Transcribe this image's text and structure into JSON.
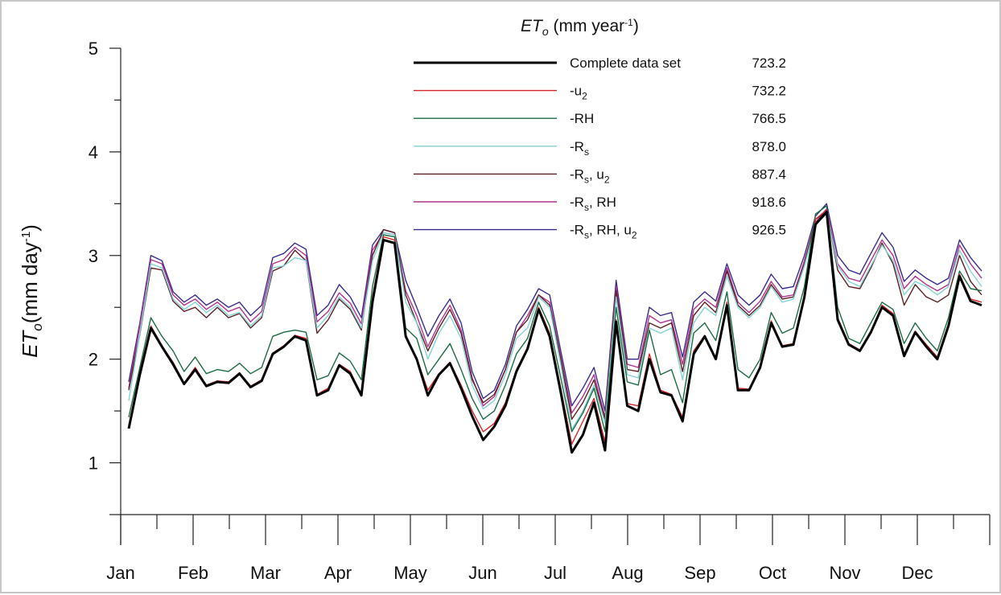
{
  "chart_data": {
    "type": "line",
    "xlabel": "",
    "ylabel": {
      "main": "ET",
      "sub": "o",
      "rest": "(mm day",
      "sup": "-1",
      "end": ")"
    },
    "ylim": [
      0.5,
      5
    ],
    "yticks": [
      1,
      2,
      3,
      4,
      5
    ],
    "months": [
      "Jan",
      "Feb",
      "Mar",
      "Apr",
      "May",
      "Jun",
      "Jul",
      "Aug",
      "Sep",
      "Oct",
      "Nov",
      "Dec"
    ],
    "legend": {
      "title": {
        "main": "ET",
        "sub": "o",
        "rest": " (mm year",
        "sup": "-1",
        "end": ")"
      },
      "position": "top-right"
    },
    "series": [
      {
        "label": "Complete data set",
        "sub": "",
        "rest": "",
        "sub2": "",
        "rest2": "",
        "total": "723.2",
        "color": "#000000",
        "width": 3,
        "values": [
          1.33,
          1.85,
          2.3,
          2.12,
          1.95,
          1.76,
          1.9,
          1.74,
          1.78,
          1.77,
          1.86,
          1.73,
          1.79,
          2.05,
          2.12,
          2.22,
          2.18,
          1.65,
          1.7,
          1.94,
          1.86,
          1.65,
          2.55,
          3.15,
          3.12,
          2.22,
          2.0,
          1.65,
          1.85,
          1.96,
          1.72,
          1.45,
          1.22,
          1.35,
          1.55,
          1.88,
          2.1,
          2.48,
          2.22,
          1.68,
          1.1,
          1.27,
          1.58,
          1.12,
          2.36,
          1.55,
          1.5,
          2.0,
          1.68,
          1.65,
          1.4,
          2.05,
          2.22,
          2.0,
          2.52,
          1.7,
          1.7,
          1.92,
          2.35,
          2.12,
          2.14,
          2.6,
          3.3,
          3.42,
          2.38,
          2.14,
          2.08,
          2.26,
          2.5,
          2.42,
          2.03,
          2.26,
          2.12,
          2.0,
          2.32,
          2.8,
          2.56,
          2.52
        ]
      },
      {
        "label": "-u",
        "sub": "2",
        "rest": "",
        "sub2": "",
        "rest2": "",
        "total": "732.2",
        "color": "#d4252c",
        "width": 1.4,
        "values": [
          1.36,
          1.86,
          2.32,
          2.13,
          1.97,
          1.77,
          1.92,
          1.75,
          1.79,
          1.78,
          1.87,
          1.74,
          1.8,
          2.06,
          2.13,
          2.23,
          2.2,
          1.66,
          1.72,
          1.95,
          1.88,
          1.66,
          2.6,
          3.18,
          3.15,
          2.23,
          2.01,
          1.7,
          1.86,
          1.97,
          1.75,
          1.5,
          1.3,
          1.38,
          1.58,
          1.9,
          2.11,
          2.5,
          2.25,
          1.72,
          1.18,
          1.4,
          1.62,
          1.2,
          2.38,
          1.57,
          1.55,
          2.05,
          1.7,
          1.66,
          1.44,
          2.08,
          2.23,
          2.01,
          2.55,
          1.72,
          1.71,
          1.93,
          2.37,
          2.13,
          2.15,
          2.62,
          3.35,
          3.44,
          2.4,
          2.15,
          2.09,
          2.27,
          2.52,
          2.44,
          2.05,
          2.27,
          2.14,
          2.02,
          2.34,
          2.82,
          2.58,
          2.55
        ]
      },
      {
        "label": "-RH",
        "sub": "",
        "rest": "",
        "sub2": "",
        "rest2": "",
        "total": "766.5",
        "color": "#1b6b43",
        "width": 1.4,
        "values": [
          1.44,
          1.92,
          2.4,
          2.22,
          2.08,
          1.88,
          2.02,
          1.86,
          1.9,
          1.88,
          1.96,
          1.86,
          1.92,
          2.22,
          2.26,
          2.28,
          2.26,
          1.8,
          1.84,
          2.06,
          1.98,
          1.8,
          2.7,
          3.2,
          3.18,
          2.3,
          2.2,
          1.85,
          2.0,
          2.15,
          1.9,
          1.62,
          1.42,
          1.5,
          1.75,
          2.05,
          2.2,
          2.55,
          2.32,
          1.82,
          1.3,
          1.48,
          1.72,
          1.3,
          2.5,
          1.78,
          1.75,
          2.28,
          1.85,
          1.9,
          1.58,
          2.25,
          2.35,
          2.18,
          2.65,
          1.9,
          1.82,
          2.0,
          2.45,
          2.25,
          2.3,
          2.7,
          3.4,
          3.48,
          2.5,
          2.2,
          2.15,
          2.35,
          2.55,
          2.48,
          2.15,
          2.35,
          2.2,
          2.08,
          2.4,
          2.85,
          2.68,
          2.66
        ]
      },
      {
        "label": "-R",
        "sub": "s",
        "rest": "",
        "sub2": "",
        "rest2": "",
        "total": "878.0",
        "color": "#82d2d4",
        "width": 1.4,
        "values": [
          1.6,
          2.25,
          2.92,
          2.88,
          2.58,
          2.48,
          2.55,
          2.45,
          2.52,
          2.42,
          2.45,
          2.32,
          2.42,
          2.88,
          2.9,
          2.98,
          2.95,
          2.3,
          2.42,
          2.6,
          2.5,
          2.3,
          2.95,
          3.22,
          3.2,
          2.55,
          2.35,
          2.0,
          2.25,
          2.42,
          2.2,
          1.75,
          1.52,
          1.6,
          1.85,
          2.2,
          2.3,
          2.6,
          2.5,
          1.95,
          1.32,
          1.5,
          1.75,
          1.38,
          2.6,
          1.85,
          1.82,
          2.3,
          2.25,
          2.3,
          1.8,
          2.35,
          2.5,
          2.42,
          2.8,
          2.5,
          2.4,
          2.5,
          2.7,
          2.55,
          2.58,
          2.9,
          3.3,
          3.4,
          2.9,
          2.75,
          2.7,
          2.9,
          3.1,
          2.95,
          2.62,
          2.75,
          2.7,
          2.62,
          2.7,
          3.05,
          2.85,
          2.7
        ]
      },
      {
        "label": "-R",
        "sub": "s",
        "rest": ", u",
        "sub2": "2",
        "rest2": "",
        "total": "887.4",
        "color": "#5c1f22",
        "width": 1.4,
        "values": [
          1.7,
          2.24,
          2.88,
          2.86,
          2.56,
          2.46,
          2.5,
          2.4,
          2.5,
          2.4,
          2.44,
          2.3,
          2.4,
          2.85,
          2.9,
          3.05,
          2.95,
          2.25,
          2.38,
          2.58,
          2.48,
          2.28,
          3.0,
          3.25,
          3.22,
          2.62,
          2.35,
          2.08,
          2.3,
          2.48,
          2.25,
          1.8,
          1.58,
          1.66,
          1.9,
          2.26,
          2.38,
          2.62,
          2.52,
          2.0,
          1.42,
          1.58,
          1.8,
          1.42,
          2.66,
          1.9,
          1.88,
          2.35,
          2.3,
          2.35,
          1.88,
          2.42,
          2.55,
          2.45,
          2.85,
          2.52,
          2.42,
          2.52,
          2.72,
          2.58,
          2.6,
          2.92,
          3.35,
          3.42,
          2.86,
          2.7,
          2.68,
          2.88,
          3.12,
          2.92,
          2.52,
          2.72,
          2.6,
          2.55,
          2.62,
          3.0,
          2.75,
          2.62
        ]
      },
      {
        "label": "-R",
        "sub": "s",
        "rest": ", RH",
        "sub2": "",
        "rest2": "",
        "total": "918.6",
        "color": "#b0328c",
        "width": 1.4,
        "values": [
          1.72,
          2.32,
          2.96,
          2.92,
          2.62,
          2.52,
          2.58,
          2.48,
          2.55,
          2.46,
          2.5,
          2.36,
          2.46,
          2.92,
          2.96,
          3.08,
          3.0,
          2.36,
          2.46,
          2.64,
          2.54,
          2.34,
          3.05,
          3.22,
          3.2,
          2.66,
          2.42,
          2.12,
          2.34,
          2.52,
          2.28,
          1.82,
          1.55,
          1.64,
          1.9,
          2.26,
          2.42,
          2.62,
          2.55,
          2.02,
          1.48,
          1.64,
          1.85,
          1.44,
          2.7,
          1.95,
          1.92,
          2.42,
          2.35,
          2.38,
          1.95,
          2.48,
          2.58,
          2.5,
          2.88,
          2.55,
          2.45,
          2.56,
          2.75,
          2.6,
          2.62,
          2.95,
          3.32,
          3.45,
          2.92,
          2.78,
          2.75,
          2.95,
          3.15,
          3.0,
          2.68,
          2.8,
          2.72,
          2.66,
          2.72,
          3.1,
          2.92,
          2.78
        ]
      },
      {
        "label": "-R",
        "sub": "s",
        "rest": ", RH, u",
        "sub2": "2",
        "rest2": "",
        "total": "926.5",
        "color": "#3a2a8c",
        "width": 1.4,
        "values": [
          1.78,
          2.35,
          3.0,
          2.95,
          2.65,
          2.55,
          2.62,
          2.52,
          2.58,
          2.5,
          2.55,
          2.42,
          2.52,
          2.98,
          3.02,
          3.12,
          3.06,
          2.42,
          2.52,
          2.72,
          2.6,
          2.4,
          3.1,
          3.25,
          3.22,
          2.76,
          2.5,
          2.22,
          2.42,
          2.58,
          2.35,
          1.88,
          1.62,
          1.7,
          1.95,
          2.32,
          2.48,
          2.68,
          2.62,
          2.08,
          1.55,
          1.72,
          1.92,
          1.5,
          2.76,
          2.0,
          2.0,
          2.5,
          2.42,
          2.45,
          2.02,
          2.55,
          2.65,
          2.56,
          2.92,
          2.62,
          2.52,
          2.62,
          2.82,
          2.68,
          2.7,
          3.0,
          3.38,
          3.5,
          3.0,
          2.86,
          2.82,
          3.02,
          3.22,
          3.08,
          2.75,
          2.86,
          2.78,
          2.72,
          2.78,
          3.15,
          2.98,
          2.85
        ]
      }
    ]
  }
}
